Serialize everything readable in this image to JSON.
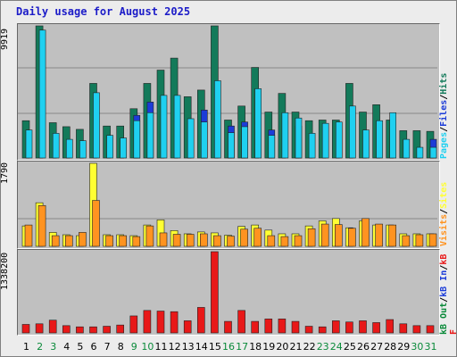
{
  "title": "Daily usage for August 2025",
  "colors": {
    "hits": "#137a5a",
    "files": "#1fd0f0",
    "pages": "#1c3cd8",
    "visits": "#ffff33",
    "sites": "#ff9320",
    "kb": "#e81818",
    "grid": "#888888",
    "panel_bg": "#c0c0c0",
    "weekend_label": "#0a8a3a"
  },
  "legend_top": [
    "Pages",
    "/",
    "Files",
    "/",
    "Hits"
  ],
  "legend_mid": [
    "Visits",
    "/",
    "Sites"
  ],
  "legend_bot": [
    "kB F",
    "/",
    "kB In",
    "/",
    "kB Out"
  ],
  "chart_data": [
    {
      "type": "bar",
      "categories": [
        "1",
        "2",
        "3",
        "4",
        "5",
        "6",
        "7",
        "8",
        "9",
        "10",
        "11",
        "12",
        "13",
        "14",
        "15",
        "16",
        "17",
        "18",
        "19",
        "20",
        "21",
        "22",
        "23",
        "24",
        "25",
        "26",
        "27",
        "28",
        "29",
        "30",
        "31"
      ],
      "y_max_label": "9919",
      "ylim": [
        0,
        9919
      ],
      "series": [
        {
          "name": "Hits",
          "values": [
            2800,
            9919,
            2650,
            2350,
            2150,
            5600,
            2400,
            2400,
            3700,
            5600,
            6600,
            7500,
            4600,
            5100,
            10000,
            2850,
            3900,
            6800,
            3450,
            4850,
            3450,
            2800,
            2850,
            2850,
            5600,
            3450,
            4000,
            2850,
            2050,
            2050,
            2000
          ]
        },
        {
          "name": "Files",
          "values": [
            2100,
            9600,
            1850,
            1400,
            1300,
            4900,
            1700,
            1500,
            2800,
            3400,
            4700,
            4700,
            2950,
            2700,
            5800,
            1900,
            2350,
            5200,
            1700,
            3400,
            3000,
            1850,
            2600,
            2700,
            3900,
            2100,
            2800,
            3400,
            1400,
            800,
            800
          ]
        },
        {
          "name": "Pages",
          "values": [
            0,
            0,
            0,
            0,
            0,
            0,
            0,
            0,
            3200,
            4200,
            0,
            0,
            0,
            3600,
            0,
            2400,
            2700,
            0,
            2100,
            0,
            2400,
            0,
            0,
            0,
            0,
            0,
            0,
            0,
            0,
            0,
            1400
          ]
        }
      ]
    },
    {
      "type": "bar",
      "categories": [
        "1",
        "2",
        "3",
        "4",
        "5",
        "6",
        "7",
        "8",
        "9",
        "10",
        "11",
        "12",
        "13",
        "14",
        "15",
        "16",
        "17",
        "18",
        "19",
        "20",
        "21",
        "22",
        "23",
        "24",
        "25",
        "26",
        "27",
        "28",
        "29",
        "30",
        "31"
      ],
      "y_max_label": "1790",
      "ylim": [
        0,
        1790
      ],
      "series": [
        {
          "name": "Visits",
          "values": [
            440,
            940,
            300,
            250,
            230,
            1790,
            250,
            250,
            230,
            460,
            570,
            340,
            270,
            310,
            290,
            240,
            430,
            460,
            350,
            270,
            270,
            440,
            550,
            600,
            400,
            550,
            460,
            460,
            270,
            270,
            270
          ]
        },
        {
          "name": "Sites",
          "values": [
            460,
            880,
            230,
            230,
            300,
            990,
            230,
            230,
            210,
            440,
            290,
            260,
            260,
            270,
            230,
            220,
            370,
            390,
            230,
            210,
            230,
            380,
            480,
            470,
            390,
            600,
            480,
            460,
            230,
            250,
            270
          ]
        }
      ]
    },
    {
      "type": "bar",
      "categories": [
        "1",
        "2",
        "3",
        "4",
        "5",
        "6",
        "7",
        "8",
        "9",
        "10",
        "11",
        "12",
        "13",
        "14",
        "15",
        "16",
        "17",
        "18",
        "19",
        "20",
        "21",
        "22",
        "23",
        "24",
        "25",
        "26",
        "27",
        "28",
        "29",
        "30",
        "31"
      ],
      "y_max_label": "1338200",
      "ylim": [
        0,
        1338200
      ],
      "series": [
        {
          "name": "kB F",
          "values": [
            140000,
            150000,
            210000,
            120000,
            100000,
            100000,
            110000,
            130000,
            280000,
            370000,
            360000,
            350000,
            200000,
            420000,
            1338200,
            190000,
            370000,
            190000,
            230000,
            230000,
            190000,
            110000,
            100000,
            200000,
            180000,
            200000,
            170000,
            220000,
            150000,
            120000,
            120000
          ]
        }
      ]
    }
  ]
}
